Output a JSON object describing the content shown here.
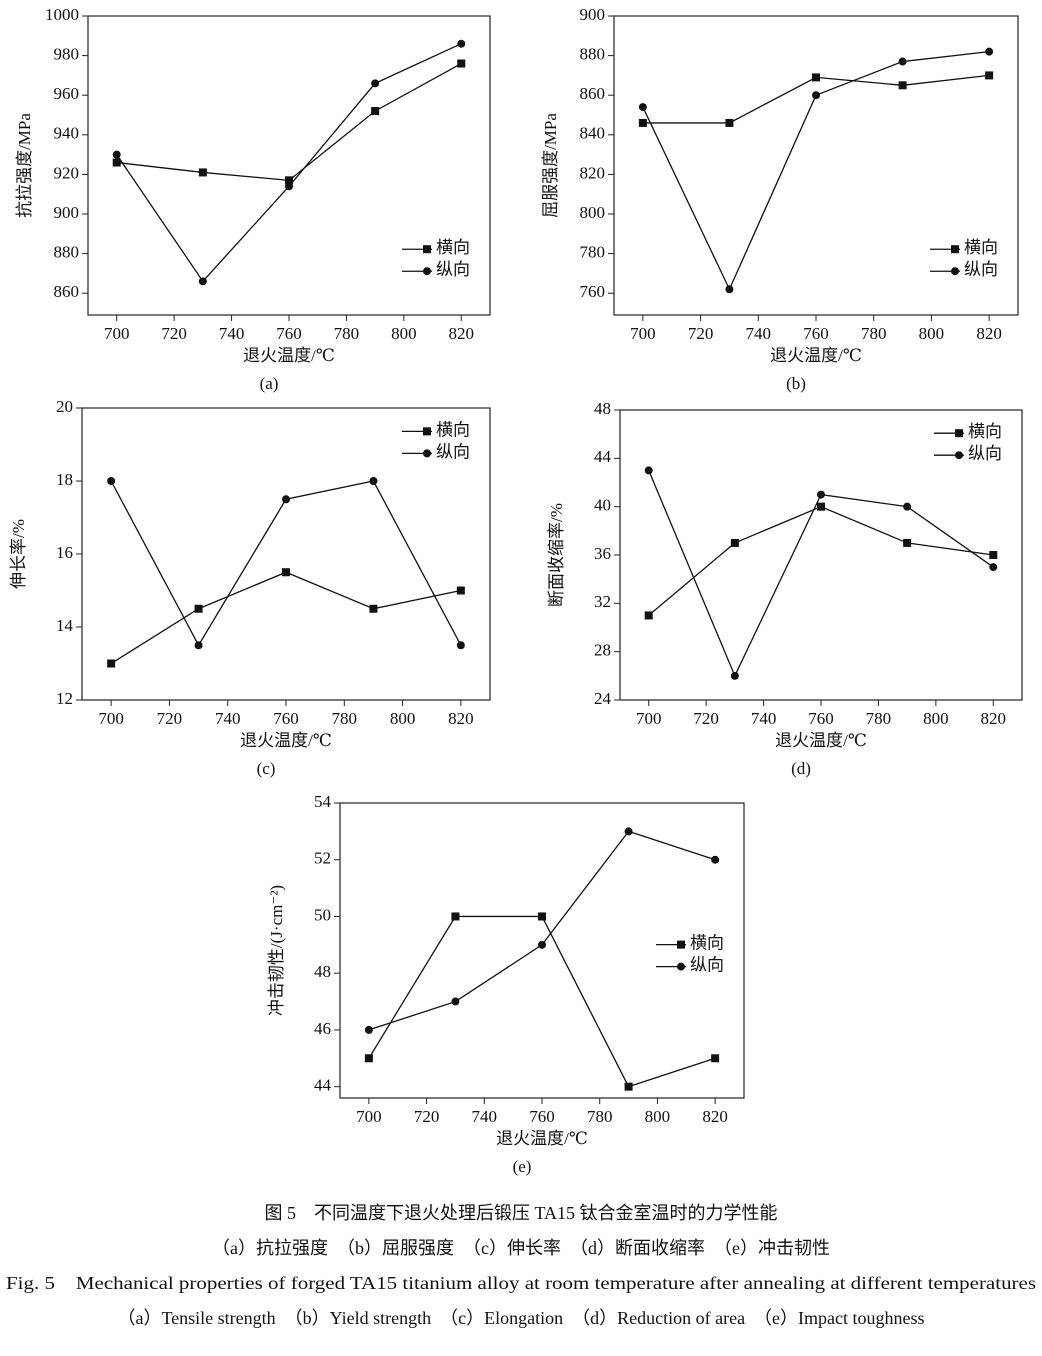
{
  "chart_data": [
    {
      "type": "line",
      "panel_label": "(a)",
      "x_label": "退火温度/℃",
      "y_label": "抗拉强度/MPa",
      "x": [
        700,
        730,
        760,
        790,
        820
      ],
      "xlim": [
        690,
        830
      ],
      "xticks": [
        700,
        720,
        740,
        760,
        780,
        800,
        820
      ],
      "ylim": [
        849,
        1000
      ],
      "yticks": [
        860,
        880,
        900,
        920,
        940,
        960,
        980,
        1000
      ],
      "legend": "lower-right",
      "series": [
        {
          "name": "横向",
          "color": "#111111",
          "marker": "square",
          "values": [
            926,
            921,
            917,
            952,
            976
          ]
        },
        {
          "name": "纵向",
          "color": "#111111",
          "marker": "circle",
          "values": [
            930,
            866,
            914,
            966,
            986
          ]
        }
      ]
    },
    {
      "type": "line",
      "panel_label": "(b)",
      "x_label": "退火温度/℃",
      "y_label": "屈服强度/MPa",
      "x": [
        700,
        730,
        760,
        790,
        820
      ],
      "xlim": [
        690,
        830
      ],
      "xticks": [
        700,
        720,
        740,
        760,
        780,
        800,
        820
      ],
      "ylim": [
        749,
        900
      ],
      "yticks": [
        760,
        780,
        800,
        820,
        840,
        860,
        880,
        900
      ],
      "legend": "lower-right",
      "series": [
        {
          "name": "横向",
          "color": "#111111",
          "marker": "square",
          "values": [
            846,
            846,
            869,
            865,
            870
          ]
        },
        {
          "name": "纵向",
          "color": "#111111",
          "marker": "circle",
          "values": [
            854,
            762,
            860,
            877,
            882
          ]
        }
      ]
    },
    {
      "type": "line",
      "panel_label": "(c)",
      "x_label": "退火温度/℃",
      "y_label": "伸长率/%",
      "x": [
        700,
        730,
        760,
        790,
        820
      ],
      "xlim": [
        690,
        830
      ],
      "xticks": [
        700,
        720,
        740,
        760,
        780,
        800,
        820
      ],
      "ylim": [
        12,
        20
      ],
      "yticks": [
        12,
        14,
        16,
        18,
        20
      ],
      "legend": "upper-right",
      "series": [
        {
          "name": "横向",
          "color": "#111111",
          "marker": "square",
          "values": [
            13,
            14.5,
            15.5,
            14.5,
            15
          ]
        },
        {
          "name": "纵向",
          "color": "#111111",
          "marker": "circle",
          "values": [
            18,
            13.5,
            17.5,
            18,
            13.5
          ]
        }
      ]
    },
    {
      "type": "line",
      "panel_label": "(d)",
      "x_label": "退火温度/℃",
      "y_label": "断面收缩率/%",
      "x": [
        700,
        730,
        760,
        790,
        820
      ],
      "xlim": [
        690,
        830
      ],
      "xticks": [
        700,
        720,
        740,
        760,
        780,
        800,
        820
      ],
      "ylim": [
        24,
        48
      ],
      "yticks": [
        24,
        28,
        32,
        36,
        40,
        44,
        48
      ],
      "legend": "upper-right",
      "series": [
        {
          "name": "横向",
          "color": "#111111",
          "marker": "square",
          "values": [
            31,
            37,
            40,
            37,
            36
          ]
        },
        {
          "name": "纵向",
          "color": "#111111",
          "marker": "circle",
          "values": [
            43,
            26,
            41,
            40,
            35
          ]
        }
      ]
    },
    {
      "type": "line",
      "panel_label": "(e)",
      "x_label": "退火温度/℃",
      "y_label": "冲击韧性/(J·cm⁻²)",
      "x": [
        700,
        730,
        760,
        790,
        820
      ],
      "xlim": [
        690,
        830
      ],
      "xticks": [
        700,
        720,
        740,
        760,
        780,
        800,
        820
      ],
      "ylim": [
        43.6,
        54
      ],
      "yticks": [
        44,
        46,
        48,
        50,
        52,
        54
      ],
      "legend": "center-right",
      "series": [
        {
          "name": "横向",
          "color": "#111111",
          "marker": "square",
          "values": [
            45,
            50,
            50,
            44,
            45
          ]
        },
        {
          "name": "纵向",
          "color": "#111111",
          "marker": "circle",
          "values": [
            46,
            47,
            49,
            53,
            52
          ]
        }
      ]
    }
  ],
  "caption": {
    "title_cn": "图 5　不同温度下退火处理后锻压 TA15 钛合金室温时的力学性能",
    "parts_cn": "（a）抗拉强度　（b）屈服强度　（c）伸长率　（d）断面收缩率　（e）冲击韧性",
    "title_en": "Fig. 5　Mechanical properties of forged TA15 titanium alloy at room temperature after annealing at different temperatures",
    "parts_en": "（a）Tensile strength　（b）Yield strength　（c）Elongation　（d）Reduction of area　（e）Impact toughness"
  }
}
